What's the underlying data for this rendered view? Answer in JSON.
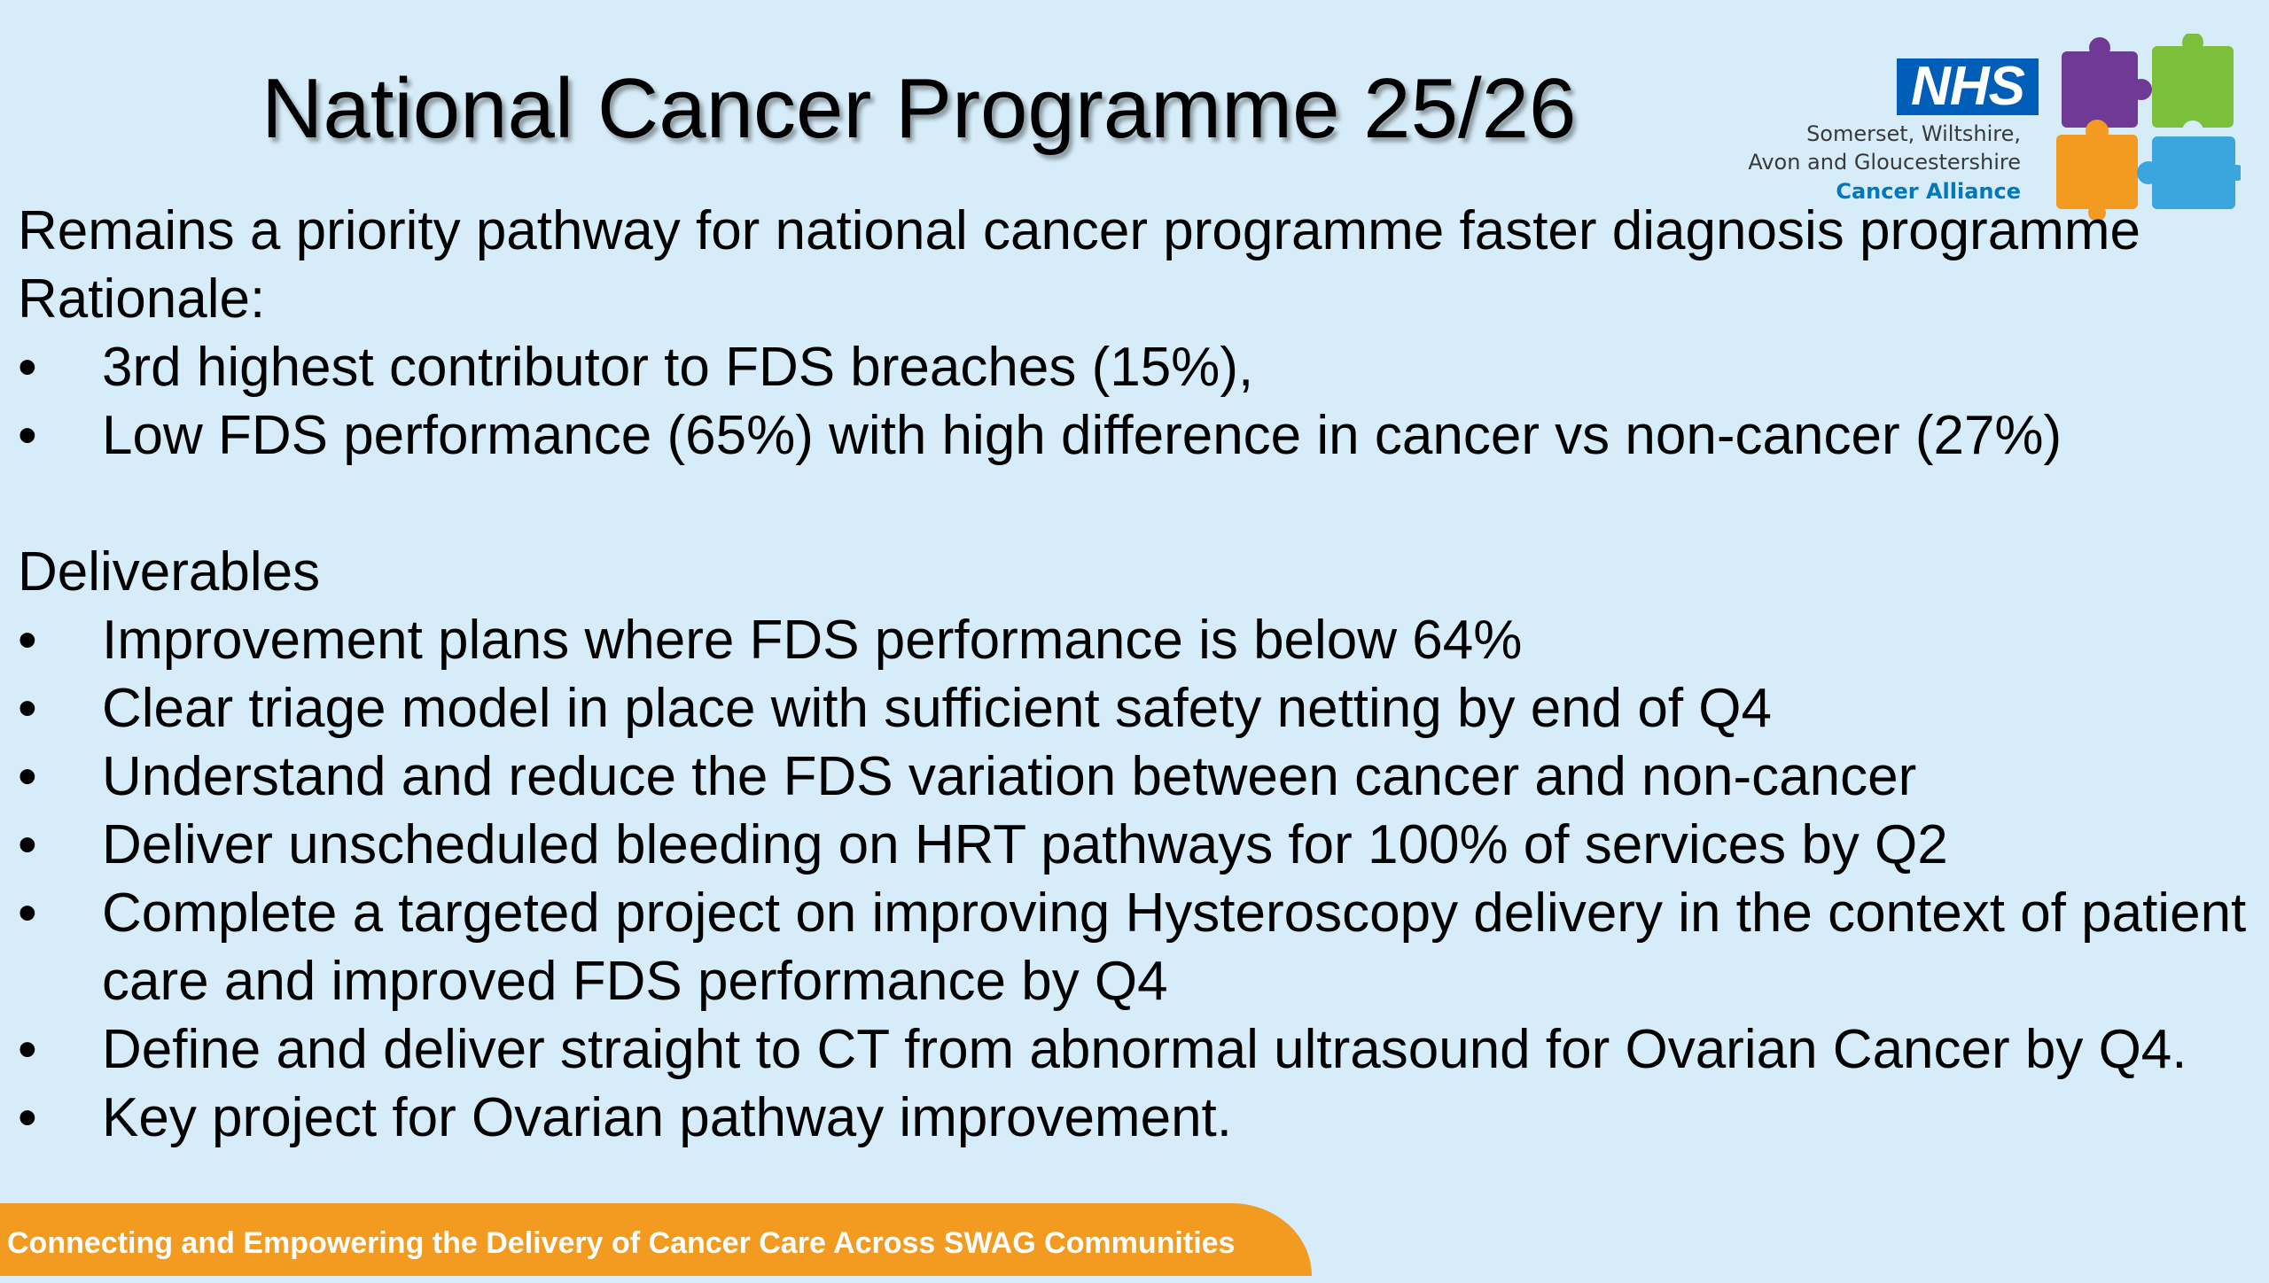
{
  "title": "National Cancer Programme 25/26",
  "logo": {
    "nhs": "NHS",
    "lines": [
      "Somerset, Wiltshire,",
      "Avon and Gloucestershire",
      "Cancer Alliance"
    ],
    "colors": {
      "nhs_blue": "#005eb8",
      "purple": "#6f3a96",
      "green": "#7bbf3b",
      "orange": "#f39a21",
      "blue": "#3aa6dd"
    }
  },
  "intro": "Remains a priority pathway for national cancer programme faster diagnosis programme",
  "rationale": {
    "heading": "Rationale:",
    "items": [
      "3rd highest contributor to FDS breaches (15%),",
      "Low FDS performance (65%) with high difference in cancer vs non-cancer (27%)"
    ]
  },
  "deliverables": {
    "heading": "Deliverables",
    "items": [
      "Improvement plans where FDS performance is below 64%",
      "Clear triage model in place with sufficient safety netting by end of Q4",
      "Understand and reduce the FDS variation between cancer and non-cancer",
      "Deliver unscheduled bleeding on HRT pathways for 100% of services by Q2",
      "Complete a targeted project on improving Hysteroscopy delivery in the context of patient care and improved FDS performance by Q4",
      "Define and deliver straight to CT from abnormal ultrasound for Ovarian Cancer by Q4.",
      "Key project for Ovarian pathway improvement."
    ]
  },
  "footer": "Connecting and Empowering the Delivery of Cancer Care Across SWAG Communities",
  "background_color": "#d6ecf8",
  "footer_color": "#f39a21"
}
